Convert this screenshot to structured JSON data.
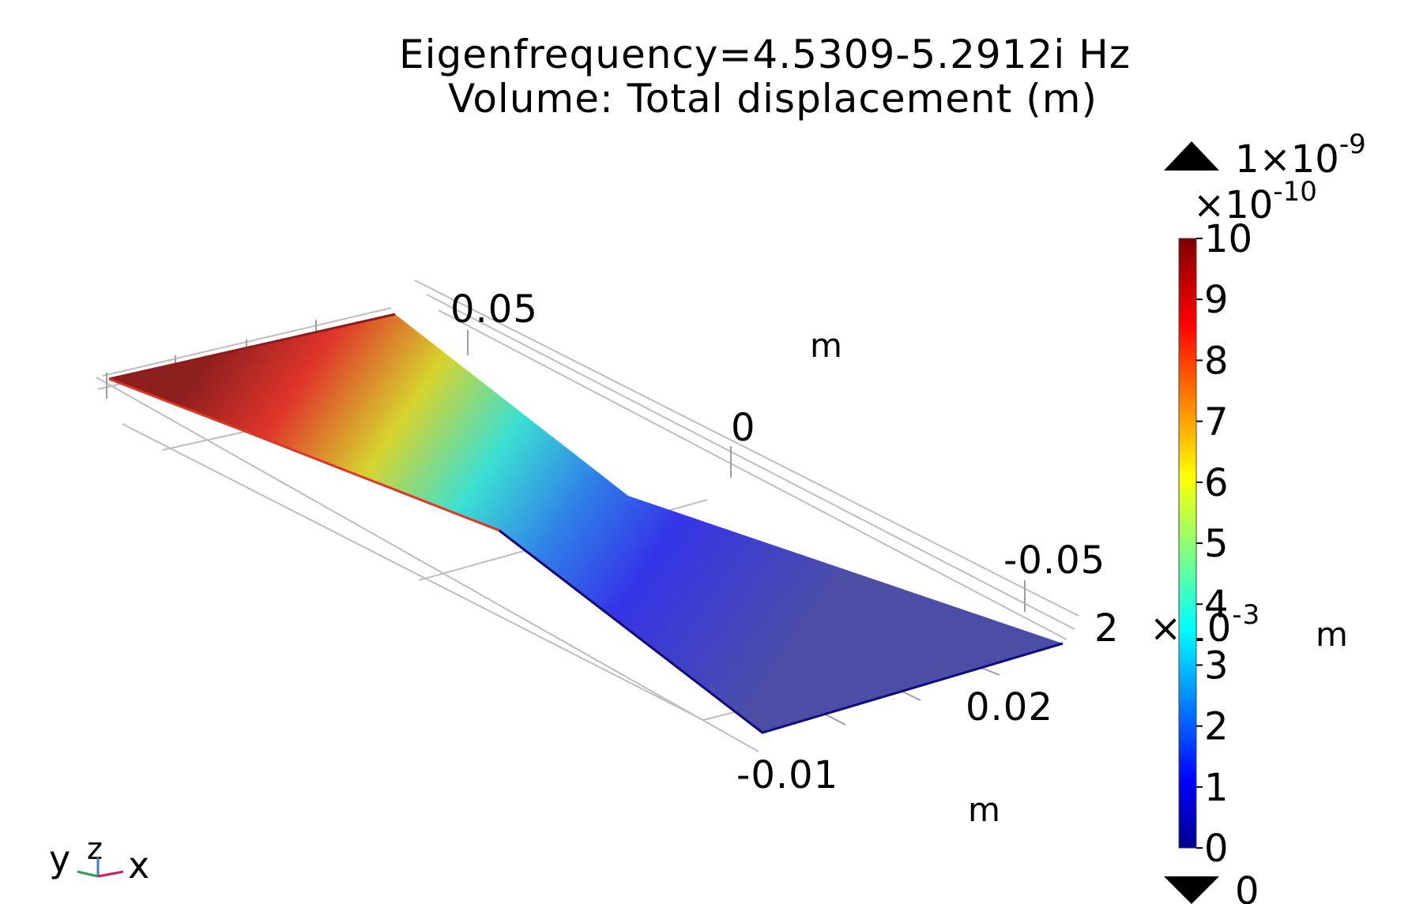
{
  "title": {
    "line1": "Eigenfrequency=4.5309-5.2912i Hz",
    "line2": "Volume: Total displacement (m)"
  },
  "axes": {
    "y_axis": {
      "ticks": [
        "0.05",
        "0",
        "-0.05"
      ],
      "unit": "m"
    },
    "z_axis": {
      "tick": "2",
      "multiplier": "×10",
      "exponent": "-3",
      "unit": "m"
    },
    "x_axis": {
      "ticks": [
        "0.02",
        "-0.01"
      ],
      "unit": "m"
    }
  },
  "colorbar": {
    "max_label": "1×10",
    "max_exponent": "-9",
    "scale_label": "×10",
    "scale_exponent": "-10",
    "ticks": [
      "10",
      "9",
      "8",
      "7",
      "6",
      "5",
      "4",
      "3",
      "2",
      "1",
      "0"
    ],
    "min_label": "0",
    "range": [
      0,
      10
    ],
    "colormap": [
      "#00008f",
      "#0000ff",
      "#00ffff",
      "#ffff00",
      "#ff0000",
      "#800000"
    ]
  },
  "triad": {
    "y": "y",
    "z": "z",
    "x": "x"
  },
  "colors": {
    "surface_high": "#8b1a1a",
    "surface_mid": "#2adcdc",
    "surface_low": "#4a4fa8"
  }
}
